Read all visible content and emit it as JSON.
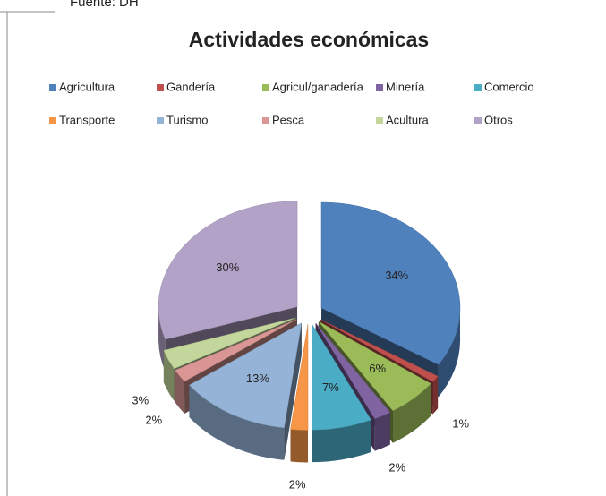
{
  "source": "Fuente: DH",
  "chart_data": {
    "type": "pie3d",
    "title": "Actividades económicas",
    "categories": [
      "Agricultura",
      "Gandería",
      "Agricul/ganadería",
      "Minería",
      "Comercio",
      "Transporte",
      "Turismo",
      "Pesca",
      "Acultura",
      "Otros"
    ],
    "values": [
      34,
      1,
      6,
      2,
      7,
      2,
      13,
      2,
      3,
      30
    ],
    "value_labels": [
      "34%",
      "1%",
      "6%",
      "2%",
      "7%",
      "2%",
      "13%",
      "2%",
      "3%",
      "30%"
    ],
    "colors": [
      "#4f81bd",
      "#c0504d",
      "#9bbb59",
      "#8064a2",
      "#4bacc6",
      "#f79646",
      "#95b3d7",
      "#d99694",
      "#c3d69b",
      "#b3a2c7"
    ],
    "legend": "top"
  }
}
